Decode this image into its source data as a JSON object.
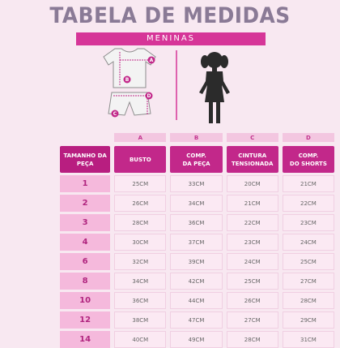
{
  "title": "TABELA DE MEDIDAS",
  "subtitle": "MENINAS",
  "diagram_labels": [
    "A",
    "B",
    "C",
    "D"
  ],
  "columns": {
    "letters": [
      "",
      "A",
      "B",
      "C",
      "D"
    ],
    "headers": [
      [
        "TAMANHO DA",
        "PEÇA"
      ],
      [
        "BUSTO",
        ""
      ],
      [
        "COMP.",
        "DA PEÇA"
      ],
      [
        "CINTURA",
        "TENSIONADA"
      ],
      [
        "COMP.",
        "DO SHORTS"
      ]
    ]
  },
  "rows": [
    {
      "size": "1",
      "busto": "25CM",
      "comp": "33CM",
      "cintura": "20CM",
      "shorts": "21CM"
    },
    {
      "size": "2",
      "busto": "26CM",
      "comp": "34CM",
      "cintura": "21CM",
      "shorts": "22CM"
    },
    {
      "size": "3",
      "busto": "28CM",
      "comp": "36CM",
      "cintura": "22CM",
      "shorts": "23CM"
    },
    {
      "size": "4",
      "busto": "30CM",
      "comp": "37CM",
      "cintura": "23CM",
      "shorts": "24CM"
    },
    {
      "size": "6",
      "busto": "32CM",
      "comp": "39CM",
      "cintura": "24CM",
      "shorts": "25CM"
    },
    {
      "size": "8",
      "busto": "34CM",
      "comp": "42CM",
      "cintura": "25CM",
      "shorts": "27CM"
    },
    {
      "size": "10",
      "busto": "36CM",
      "comp": "44CM",
      "cintura": "26CM",
      "shorts": "28CM"
    },
    {
      "size": "12",
      "busto": "38CM",
      "comp": "47CM",
      "cintura": "27CM",
      "shorts": "29CM"
    },
    {
      "size": "14",
      "busto": "40CM",
      "comp": "49CM",
      "cintura": "28CM",
      "shorts": "31CM"
    }
  ],
  "colors": {
    "accent": "#d63598",
    "title": "#8a7a96",
    "background": "#f8e8f1"
  }
}
